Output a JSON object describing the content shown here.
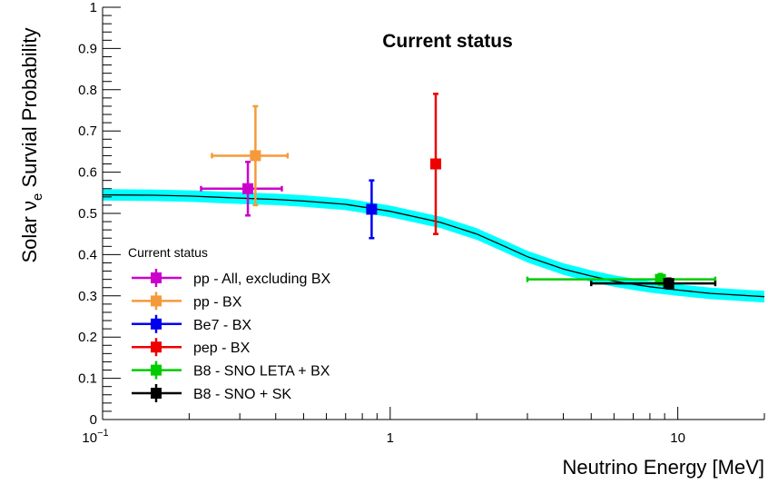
{
  "chart_data": {
    "type": "scatter",
    "title": "Current status",
    "xlabel": "Neutrino Energy [MeV]",
    "ylabel_main": "Solar ν",
    "ylabel_sub": "e",
    "ylabel_rest": " Survial Probability",
    "x_scale": "log",
    "xlim": [
      0.1,
      20
    ],
    "ylim": [
      0,
      1
    ],
    "x_ticks": [
      {
        "value": 0.1,
        "base": "10",
        "exp": "−1"
      },
      {
        "value": 1,
        "label": "1"
      },
      {
        "value": 10,
        "label": "10"
      }
    ],
    "y_ticks": [
      "0",
      "0.1",
      "0.2",
      "0.3",
      "0.4",
      "0.5",
      "0.6",
      "0.7",
      "0.8",
      "0.9",
      "1"
    ],
    "legend_title": "Current status",
    "legend_position": "bottom-left",
    "band": {
      "color": "#00ffff",
      "curve_color": "#000000",
      "points": [
        [
          0.1,
          0.545
        ],
        [
          0.15,
          0.544
        ],
        [
          0.2,
          0.542
        ],
        [
          0.3,
          0.537
        ],
        [
          0.4,
          0.534
        ],
        [
          0.5,
          0.53
        ],
        [
          0.7,
          0.522
        ],
        [
          1.0,
          0.505
        ],
        [
          1.5,
          0.478
        ],
        [
          2.0,
          0.45
        ],
        [
          2.5,
          0.42
        ],
        [
          3.0,
          0.395
        ],
        [
          4.0,
          0.365
        ],
        [
          5.0,
          0.348
        ],
        [
          6.0,
          0.336
        ],
        [
          7.0,
          0.328
        ],
        [
          8.0,
          0.322
        ],
        [
          10.0,
          0.314
        ],
        [
          13.0,
          0.306
        ],
        [
          20.0,
          0.298
        ]
      ],
      "half_width": 0.014
    },
    "series": [
      {
        "name": "pp - All, excluding BX",
        "color": "#cc00cc",
        "x": 0.32,
        "y": 0.56,
        "xerr": [
          0.22,
          0.42
        ],
        "yerr": [
          0.495,
          0.625
        ]
      },
      {
        "name": "pp - BX",
        "color": "#f59a3a",
        "x": 0.34,
        "y": 0.64,
        "xerr": [
          0.24,
          0.44
        ],
        "yerr": [
          0.52,
          0.76
        ]
      },
      {
        "name": "Be7 - BX",
        "color": "#0000ee",
        "x": 0.862,
        "y": 0.51,
        "xerr": [
          0.862,
          0.862
        ],
        "yerr": [
          0.44,
          0.58
        ]
      },
      {
        "name": "pep - BX",
        "color": "#ee0000",
        "x": 1.44,
        "y": 0.62,
        "xerr": [
          1.44,
          1.44
        ],
        "yerr": [
          0.45,
          0.79
        ]
      },
      {
        "name": "B8 - SNO LETA + BX",
        "color": "#00cc00",
        "x": 8.7,
        "y": 0.34,
        "xerr": [
          3.0,
          13.5
        ],
        "yerr": [
          0.327,
          0.353
        ]
      },
      {
        "name": "B8 - SNO + SK",
        "color": "#000000",
        "x": 9.3,
        "y": 0.33,
        "xerr": [
          5.0,
          13.5
        ],
        "yerr": [
          0.318,
          0.342
        ]
      }
    ]
  }
}
